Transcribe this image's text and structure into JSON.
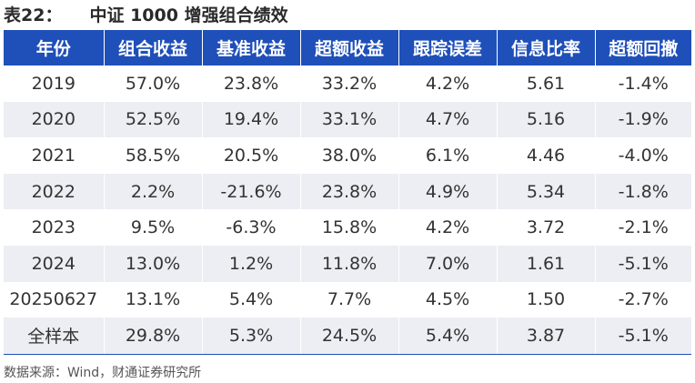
{
  "title": {
    "label": "表22：",
    "text": "中证 1000 增强组合绩效"
  },
  "table": {
    "headers": [
      "年份",
      "组合收益",
      "基准收益",
      "超额收益",
      "跟踪误差",
      "信息比率",
      "超额回撤"
    ],
    "rows": [
      [
        "2019",
        "57.0%",
        "23.8%",
        "33.2%",
        "4.2%",
        "5.61",
        "-1.4%"
      ],
      [
        "2020",
        "52.5%",
        "19.4%",
        "33.1%",
        "4.7%",
        "5.16",
        "-1.9%"
      ],
      [
        "2021",
        "58.5%",
        "20.5%",
        "38.0%",
        "6.1%",
        "4.46",
        "-4.0%"
      ],
      [
        "2022",
        "2.2%",
        "-21.6%",
        "23.8%",
        "4.9%",
        "5.34",
        "-1.8%"
      ],
      [
        "2023",
        "9.5%",
        "-6.3%",
        "15.8%",
        "4.2%",
        "3.72",
        "-2.1%"
      ],
      [
        "2024",
        "13.0%",
        "1.2%",
        "11.8%",
        "7.0%",
        "1.61",
        "-5.1%"
      ],
      [
        "20250627",
        "13.1%",
        "5.4%",
        "7.7%",
        "4.5%",
        "1.50",
        "-2.7%"
      ],
      [
        "全样本",
        "29.8%",
        "5.3%",
        "24.5%",
        "5.4%",
        "3.87",
        "-5.1%"
      ]
    ]
  },
  "source": "数据来源：Wind，财通证券研究所",
  "colors": {
    "header_bg": "#1f4fb8",
    "stripe_bg": "#eceef3"
  }
}
